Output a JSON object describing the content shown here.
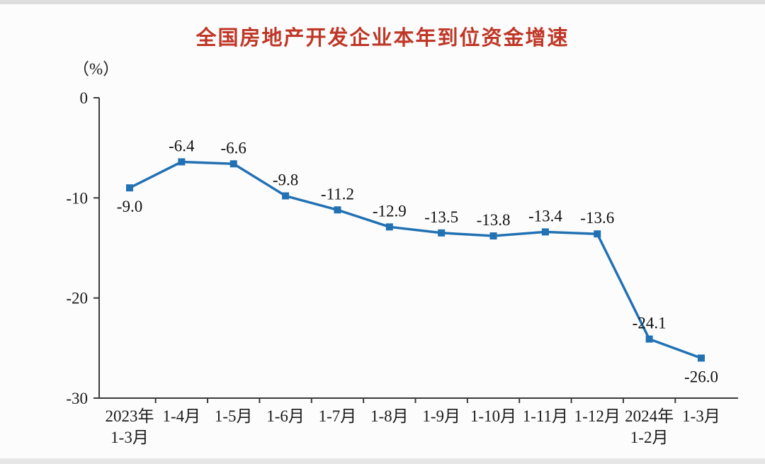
{
  "page": {
    "title": "全国房地产开发企业本年到位资金增速",
    "y_unit_label": "（%）"
  },
  "chart_data": {
    "type": "line",
    "title": "全国房地产开发企业本年到位资金增速",
    "ylabel": "（%）",
    "xlabel": "",
    "categories": [
      "2023年 1-3月",
      "1-4月",
      "1-5月",
      "1-6月",
      "1-7月",
      "1-8月",
      "1-9月",
      "1-10月",
      "1-11月",
      "1-12月",
      "2024年 1-2月",
      "1-3月"
    ],
    "x_labels_top": [
      "2023年",
      "1-4月",
      "1-5月",
      "1-6月",
      "1-7月",
      "1-8月",
      "1-9月",
      "1-10月",
      "1-11月",
      "1-12月",
      "2024年",
      "1-3月"
    ],
    "x_labels_bottom": [
      "1-3月",
      "",
      "",
      "",
      "",
      "",
      "",
      "",
      "",
      "",
      "1-2月",
      ""
    ],
    "values": [
      -9.0,
      -6.4,
      -6.6,
      -9.8,
      -11.2,
      -12.9,
      -13.5,
      -13.8,
      -13.4,
      -13.6,
      -24.1,
      -26.0
    ],
    "data_labels": [
      "-9.0",
      "-6.4",
      "-6.6",
      "-9.8",
      "-11.2",
      "-12.9",
      "-13.5",
      "-13.8",
      "-13.4",
      "-13.6",
      "-24.1",
      "-26.0"
    ],
    "label_position": [
      "below",
      "above",
      "above",
      "above",
      "above",
      "above",
      "above",
      "above",
      "above",
      "above",
      "above",
      "below"
    ],
    "ylim": [
      -30,
      0
    ],
    "yticks": [
      0,
      -10,
      -20,
      -30
    ],
    "grid": false,
    "legend": "none",
    "line_color": "#2271b3",
    "marker": "square",
    "title_color": "#bf3727",
    "axis_color": "#3a3a3a",
    "text_color": "#1a1a1a"
  }
}
